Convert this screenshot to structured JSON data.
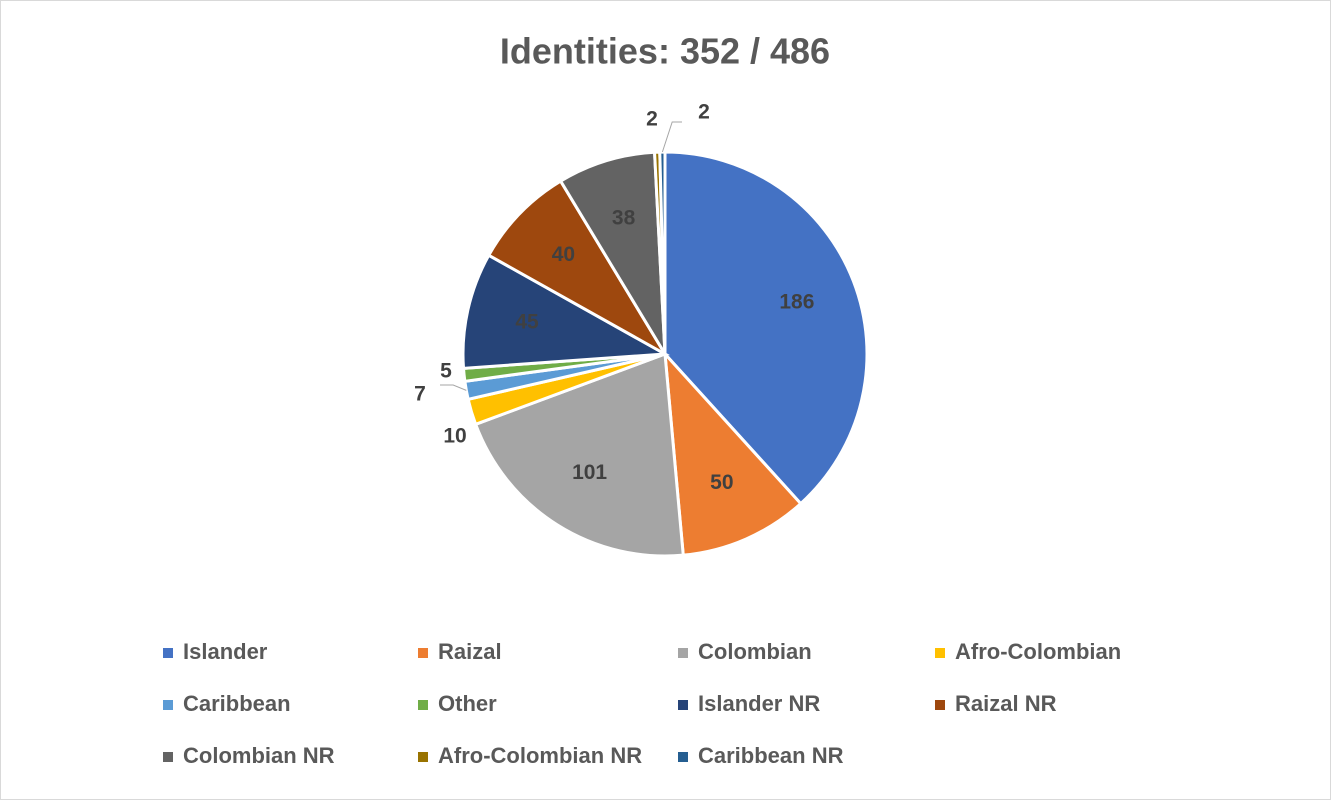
{
  "chart_data": {
    "type": "pie",
    "title": "Identities: 352 / 486",
    "categories": [
      "Islander",
      "Raizal",
      "Colombian",
      "Afro-Colombian",
      "Caribbean",
      "Other",
      "Islander NR",
      "Raizal NR",
      "Colombian NR",
      "Afro-Colombian NR",
      "Caribbean NR"
    ],
    "values": [
      186,
      50,
      101,
      10,
      7,
      5,
      45,
      40,
      38,
      2,
      2
    ],
    "colors": [
      "#4472c4",
      "#ed7d31",
      "#a5a5a5",
      "#ffc000",
      "#5b9bd5",
      "#70ad47",
      "#264478",
      "#9e480e",
      "#636363",
      "#997300",
      "#255e91"
    ]
  }
}
